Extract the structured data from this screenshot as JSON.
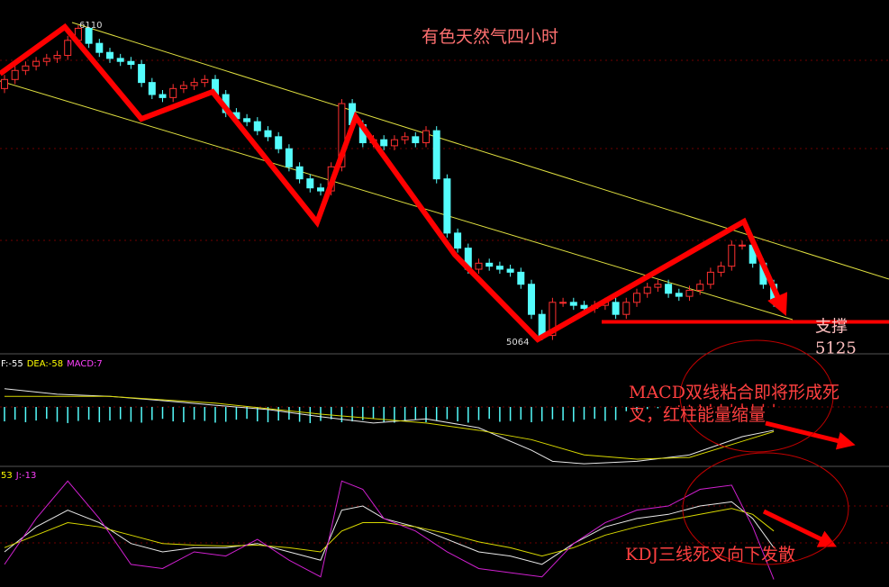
{
  "chart_data": [
    {
      "type": "candlestick",
      "title": "有色天然气四小时",
      "up_color": "#ff3030",
      "down_color": "#54fcfc",
      "ylim": [
        5022,
        6194
      ],
      "open": [
        5900,
        5930,
        5960,
        5975,
        5990,
        6000,
        6010,
        6060,
        6100,
        6050,
        6020,
        6000,
        5990,
        5980,
        5920,
        5880,
        5870,
        5900,
        5910,
        5920,
        5930,
        5880,
        5820,
        5800,
        5790,
        5760,
        5740,
        5700,
        5640,
        5600,
        5570,
        5560,
        5640,
        5850,
        5780,
        5720,
        5730,
        5710,
        5730,
        5740,
        5720,
        5760,
        5600,
        5420,
        5370,
        5300,
        5320,
        5310,
        5300,
        5290,
        5250,
        5150,
        5080,
        5190,
        5190,
        5180,
        5170,
        5180,
        5190,
        5150,
        5190,
        5220,
        5240,
        5250,
        5220,
        5210,
        5230,
        5250,
        5290,
        5310,
        5380,
        5380,
        5320,
        5250
      ],
      "high": [
        5945,
        5975,
        5990,
        6005,
        6015,
        6025,
        6075,
        6110,
        6105,
        6065,
        6035,
        6015,
        6005,
        5995,
        5935,
        5895,
        5915,
        5925,
        5935,
        5945,
        5945,
        5895,
        5835,
        5815,
        5805,
        5775,
        5755,
        5715,
        5655,
        5615,
        5585,
        5655,
        5865,
        5865,
        5795,
        5745,
        5745,
        5745,
        5755,
        5755,
        5775,
        5775,
        5615,
        5435,
        5385,
        5335,
        5335,
        5325,
        5315,
        5305,
        5265,
        5165,
        5205,
        5205,
        5205,
        5195,
        5195,
        5205,
        5205,
        5205,
        5235,
        5255,
        5265,
        5265,
        5235,
        5245,
        5265,
        5305,
        5325,
        5395,
        5395,
        5395,
        5335,
        5265
      ],
      "low": [
        5885,
        5915,
        5945,
        5960,
        5975,
        5985,
        5995,
        6045,
        6035,
        6005,
        5985,
        5975,
        5965,
        5905,
        5865,
        5855,
        5855,
        5885,
        5895,
        5905,
        5865,
        5805,
        5785,
        5775,
        5745,
        5725,
        5685,
        5625,
        5585,
        5555,
        5545,
        5545,
        5625,
        5765,
        5705,
        5705,
        5695,
        5695,
        5715,
        5705,
        5705,
        5585,
        5405,
        5355,
        5285,
        5285,
        5295,
        5285,
        5275,
        5235,
        5135,
        5064,
        5065,
        5175,
        5165,
        5155,
        5155,
        5165,
        5135,
        5135,
        5175,
        5205,
        5225,
        5205,
        5195,
        5195,
        5215,
        5235,
        5275,
        5295,
        5365,
        5305,
        5235,
        5175
      ],
      "close": [
        5930,
        5960,
        5975,
        5990,
        6000,
        6010,
        6060,
        6100,
        6050,
        6020,
        6000,
        5990,
        5980,
        5920,
        5880,
        5870,
        5900,
        5910,
        5920,
        5930,
        5880,
        5820,
        5800,
        5790,
        5760,
        5740,
        5700,
        5640,
        5600,
        5570,
        5560,
        5640,
        5850,
        5780,
        5720,
        5730,
        5710,
        5730,
        5740,
        5720,
        5760,
        5600,
        5420,
        5370,
        5300,
        5320,
        5310,
        5300,
        5290,
        5250,
        5150,
        5080,
        5190,
        5190,
        5180,
        5170,
        5180,
        5190,
        5150,
        5190,
        5220,
        5240,
        5250,
        5220,
        5210,
        5230,
        5250,
        5290,
        5310,
        5380,
        5380,
        5320,
        5250,
        5190
      ],
      "high_label": 6110,
      "low_label": 5064,
      "support_label": "支撑",
      "support_value": 5125
    },
    {
      "type": "macd",
      "ylim": [
        -140,
        121
      ],
      "labels": [
        {
          "text": "F:-55",
          "color": "#ffffff"
        },
        {
          "text": "DEA:-58",
          "color": "#ffff00"
        },
        {
          "text": "MACD:7",
          "color": "#ff40ff"
        }
      ],
      "up_color": "#ff3030",
      "down_color": "#54fcfc",
      "histogram": [
        -34,
        -30,
        -36,
        -32,
        -28,
        -35,
        -38,
        -33,
        -30,
        -36,
        -32,
        -29,
        -35,
        -37,
        -31,
        -28,
        -34,
        -36,
        -30,
        -33,
        -37,
        -35,
        -30,
        -28,
        -34,
        -36,
        -32,
        -30,
        -35,
        -38,
        -33,
        -29,
        -36,
        -34,
        -31,
        -28,
        -35,
        -37,
        -32,
        -30,
        -36,
        -33,
        -29,
        -34,
        -37,
        -31,
        -28,
        -35,
        -33,
        -30,
        -36,
        -34,
        -29,
        -32,
        -35,
        -30,
        -28,
        -33,
        -31,
        -10,
        -8,
        -5,
        -3,
        2,
        4,
        5,
        6,
        7,
        7,
        7,
        8,
        7,
        7,
        7
      ],
      "series": [
        {
          "name": "DIF",
          "color": "#e8e8e8",
          "x": [
            0,
            5,
            10,
            15,
            20,
            25,
            30,
            35,
            40,
            45,
            50,
            52,
            55,
            60,
            65,
            70,
            73
          ],
          "values": [
            43,
            30,
            25,
            15,
            4,
            -6,
            -23,
            -38,
            -28,
            -49,
            -102,
            -128,
            -134,
            -128,
            -113,
            -70,
            -55
          ]
        },
        {
          "name": "DEA",
          "color": "#d8d800",
          "x": [
            0,
            10,
            20,
            30,
            40,
            45,
            50,
            55,
            60,
            65,
            70,
            73
          ],
          "values": [
            25,
            25,
            9,
            -17,
            -38,
            -55,
            -77,
            -113,
            -123,
            -119,
            -81,
            -58
          ]
        }
      ]
    },
    {
      "type": "line",
      "ylim": [
        -20,
        115
      ],
      "labels": [
        {
          "text": "53",
          "color": "#ffff00"
        },
        {
          "text": "J:-13",
          "color": "#ff40ff"
        }
      ],
      "x": [
        0,
        3,
        6,
        9,
        12,
        15,
        18,
        21,
        24,
        27,
        30,
        32,
        34,
        36,
        39,
        42,
        45,
        48,
        51,
        54,
        57,
        60,
        63,
        66,
        69,
        71,
        73
      ],
      "series": [
        {
          "name": "K",
          "color": "#e8e8e8",
          "values": [
            20,
            50,
            70,
            55,
            30,
            20,
            25,
            25,
            30,
            20,
            10,
            70,
            75,
            60,
            50,
            35,
            20,
            15,
            5,
            30,
            50,
            60,
            65,
            75,
            80,
            60,
            25
          ]
        },
        {
          "name": "D",
          "color": "#d8d800",
          "values": [
            25,
            40,
            55,
            50,
            40,
            30,
            28,
            27,
            28,
            25,
            20,
            45,
            55,
            55,
            50,
            42,
            32,
            25,
            15,
            25,
            40,
            50,
            58,
            65,
            72,
            65,
            45
          ]
        },
        {
          "name": "J",
          "color": "#d020d0",
          "values": [
            5,
            60,
            105,
            60,
            5,
            0,
            20,
            15,
            35,
            10,
            -10,
            105,
            95,
            60,
            45,
            20,
            0,
            -5,
            -10,
            30,
            55,
            70,
            75,
            95,
            100,
            50,
            -13
          ]
        }
      ]
    }
  ],
  "annotations": {
    "macd_note": [
      "MACD双线粘合即将形成死",
      "叉，红柱能量缩量"
    ],
    "kdj_note": "KDJ三线死叉向下发散"
  }
}
